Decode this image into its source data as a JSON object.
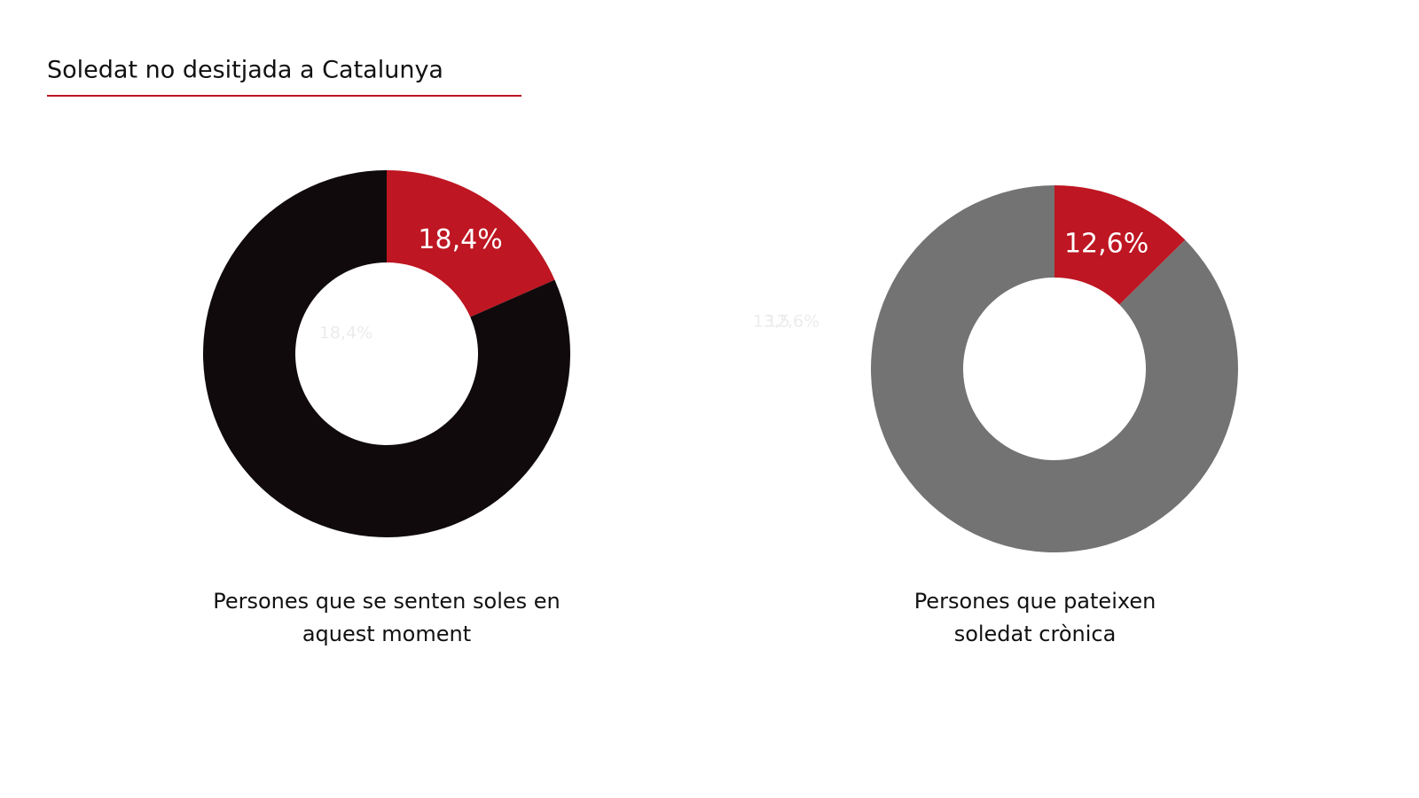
{
  "title": "Soledat no desitjada a Catalunya",
  "chart_data": [
    {
      "type": "donut",
      "values": [
        18.4,
        81.6
      ],
      "value_labels": [
        "18,4%",
        null
      ],
      "colors": [
        "#be1622",
        "#100a0c"
      ],
      "caption": [
        "Persones que se senten soles en",
        "aquest moment"
      ],
      "annotations": [
        "18,4%"
      ]
    },
    {
      "type": "donut",
      "values": [
        12.6,
        87.4
      ],
      "value_labels": [
        "12,6%",
        null
      ],
      "colors": [
        "#be1622",
        "#737373"
      ],
      "caption": [
        "Persones que pateixen",
        "soledat crònica"
      ],
      "annotations": [
        "13,5",
        "12,6%"
      ]
    }
  ]
}
